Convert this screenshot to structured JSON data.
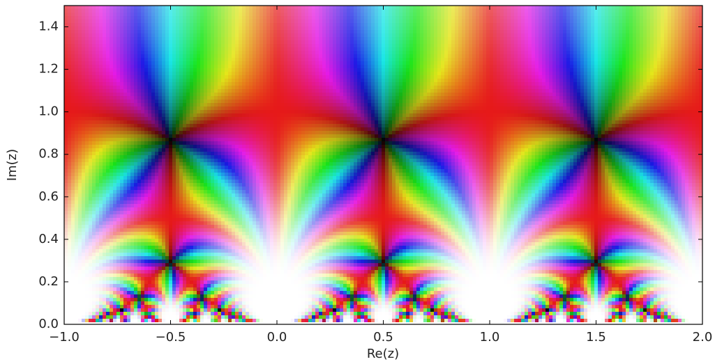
{
  "chart_data": {
    "type": "domain-coloring",
    "xlabel": "Re(z)",
    "ylabel": "Im(z)",
    "xlim": [
      -1,
      2
    ],
    "ylim": [
      0,
      1.5
    ],
    "xticks": [
      {
        "value": -1,
        "label": "−1.0"
      },
      {
        "value": -0.5,
        "label": "−0.5"
      },
      {
        "value": 0,
        "label": "0.0"
      },
      0.5,
      {
        "value": 1,
        "label": "1.0"
      },
      1.5,
      {
        "value": 2,
        "label": "2.0"
      }
    ],
    "yticks": [
      {
        "value": 0,
        "label": "0.0"
      },
      0.2,
      0.4,
      0.6,
      0.8,
      {
        "value": 1,
        "label": "1.0"
      },
      1.2,
      1.4
    ]
  }
}
